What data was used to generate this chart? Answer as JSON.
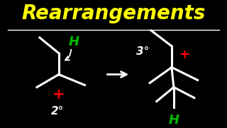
{
  "bg_color": "#000000",
  "title_text": "Rearrangements",
  "title_color": "#FFFF00",
  "title_fontsize": 20,
  "line_color": "#FFFFFF",
  "plus_color": "#FF0000",
  "h_color": "#00BB00",
  "label_2deg": "2°",
  "label_3deg": "3°",
  "label_h": "H"
}
